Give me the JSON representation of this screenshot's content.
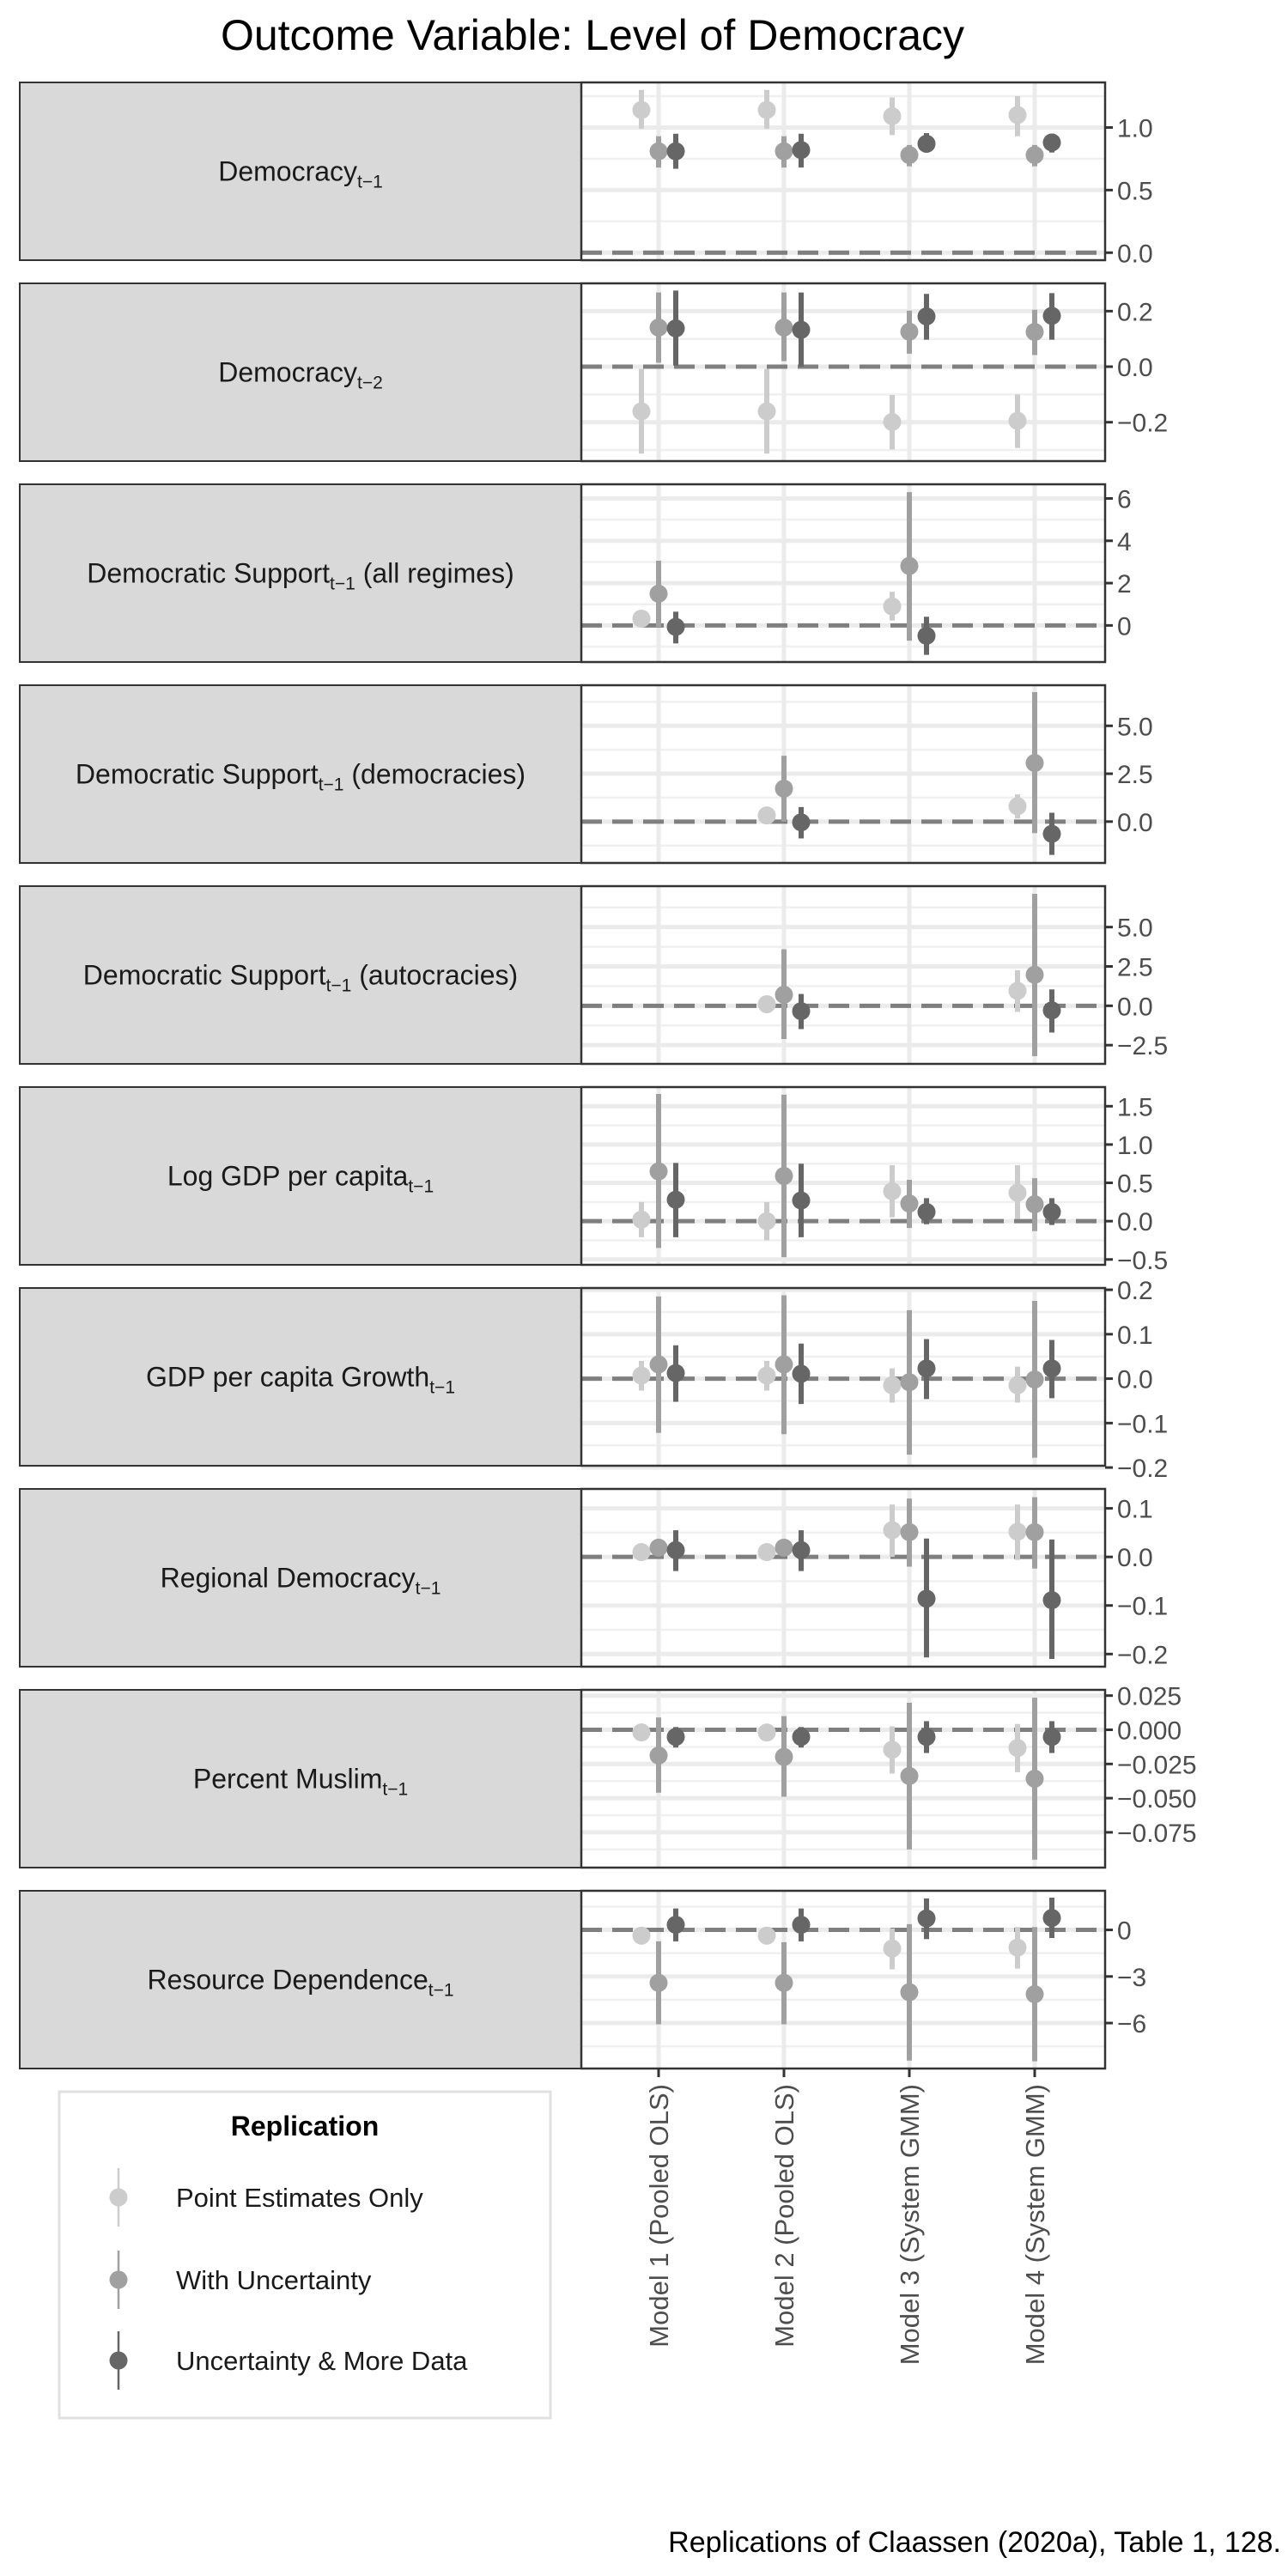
{
  "chart_data": {
    "type": "scatter",
    "subtype": "pointrange-facets",
    "title": "Outcome Variable: Level of Democracy",
    "caption": "Replications of Claassen (2020a), Table 1, 128.",
    "categories": [
      "Model 1 (Pooled OLS)",
      "Model 2 (Pooled OLS)",
      "Model 3 (System GMM)",
      "Model 4 (System GMM)"
    ],
    "reference_line": 0,
    "grid": true,
    "legend": {
      "title": "Replication",
      "placement": "bottom-left",
      "entries": [
        {
          "key": "light",
          "label": "Point Estimates Only",
          "color": "#cccccc"
        },
        {
          "key": "mid",
          "label": "With Uncertainty",
          "color": "#a0a0a0"
        },
        {
          "key": "dark",
          "label": "Uncertainty & More Data",
          "color": "#666666"
        }
      ]
    },
    "series_format": "per model: [estimate, lower, upper] or null",
    "panels": [
      {
        "label": {
          "main": "Democracy",
          "sub": "t−1",
          "suffix": ""
        },
        "ylim": [
          -0.06,
          1.36
        ],
        "breaks": [
          0,
          0.5,
          1.0
        ],
        "break_labels": [
          "0.0",
          "0.5",
          "1.0"
        ],
        "light": [
          [
            1.14,
            0.99,
            1.3
          ],
          [
            1.14,
            0.99,
            1.3
          ],
          [
            1.09,
            0.94,
            1.24
          ],
          [
            1.1,
            0.93,
            1.25
          ]
        ],
        "mid": [
          [
            0.81,
            0.68,
            0.93
          ],
          [
            0.81,
            0.68,
            0.93
          ],
          [
            0.78,
            0.69,
            0.86
          ],
          [
            0.78,
            0.69,
            0.86
          ]
        ],
        "dark": [
          [
            0.81,
            0.67,
            0.95
          ],
          [
            0.82,
            0.68,
            0.95
          ],
          [
            0.87,
            0.8,
            0.955
          ],
          [
            0.88,
            0.8,
            0.95
          ]
        ]
      },
      {
        "label": {
          "main": "Democracy",
          "sub": "t−2",
          "suffix": ""
        },
        "ylim": [
          -0.34,
          0.3
        ],
        "breaks": [
          -0.2,
          0,
          0.2
        ],
        "break_labels": [
          "−0.2",
          "0.0",
          "0.2"
        ],
        "light": [
          [
            -0.161,
            -0.313,
            -0.008
          ],
          [
            -0.161,
            -0.313,
            -0.008
          ],
          [
            -0.199,
            -0.298,
            -0.102
          ],
          [
            -0.195,
            -0.293,
            -0.1
          ]
        ],
        "mid": [
          [
            0.141,
            0.014,
            0.267
          ],
          [
            0.141,
            0.02,
            0.267
          ],
          [
            0.126,
            0.047,
            0.202
          ],
          [
            0.125,
            0.042,
            0.205
          ]
        ],
        "dark": [
          [
            0.138,
            0.004,
            0.274
          ],
          [
            0.133,
            0.0,
            0.267
          ],
          [
            0.181,
            0.097,
            0.262
          ],
          [
            0.183,
            0.097,
            0.265
          ]
        ]
      },
      {
        "label": {
          "main": "Democratic Support",
          "sub": "t−1",
          "suffix": " (all regimes)"
        },
        "ylim": [
          -1.73,
          6.67
        ],
        "breaks": [
          0,
          2,
          4,
          6
        ],
        "break_labels": [
          "0",
          "2",
          "4",
          "6"
        ],
        "light": [
          [
            0.32,
            null,
            null
          ],
          null,
          [
            0.9,
            0.23,
            1.59
          ],
          null
        ],
        "mid": [
          [
            1.5,
            -0.07,
            3.06
          ],
          null,
          [
            2.81,
            -0.72,
            6.3
          ],
          null
        ],
        "dark": [
          [
            -0.07,
            -0.85,
            0.65
          ],
          null,
          [
            -0.49,
            -1.39,
            0.41
          ],
          null
        ]
      },
      {
        "label": {
          "main": "Democratic Support",
          "sub": "t−1",
          "suffix": " (democracies)"
        },
        "ylim": [
          -2.16,
          7.12
        ],
        "breaks": [
          0,
          2.5,
          5
        ],
        "break_labels": [
          "0.0",
          "2.5",
          "5.0"
        ],
        "light": [
          null,
          [
            0.32,
            null,
            null
          ],
          null,
          [
            0.8,
            0.16,
            1.42
          ]
        ],
        "mid": [
          null,
          [
            1.72,
            0.0,
            3.44
          ],
          null,
          [
            3.06,
            -0.6,
            6.76
          ]
        ],
        "dark": [
          null,
          [
            -0.04,
            -0.88,
            0.76
          ],
          null,
          [
            -0.64,
            -1.74,
            0.46
          ]
        ]
      },
      {
        "label": {
          "main": "Democratic Support",
          "sub": "t−1",
          "suffix": " (autocracies)"
        },
        "ylim": [
          -3.69,
          7.6
        ],
        "breaks": [
          -2.5,
          0,
          2.5,
          5
        ],
        "break_labels": [
          "−2.5",
          "0.0",
          "2.5",
          "5.0"
        ],
        "light": [
          null,
          [
            0.1,
            null,
            null
          ],
          null,
          [
            0.95,
            -0.39,
            2.26
          ]
        ],
        "mid": [
          null,
          [
            0.7,
            -2.11,
            3.59
          ],
          null,
          [
            1.97,
            -3.2,
            7.11
          ]
        ],
        "dark": [
          null,
          [
            -0.34,
            -1.48,
            0.75
          ],
          null,
          [
            -0.29,
            -1.7,
            1.04
          ]
        ]
      },
      {
        "label": {
          "main": "Log GDP per capita",
          "sub": "t−1",
          "suffix": ""
        },
        "ylim": [
          -0.57,
          1.75
        ],
        "breaks": [
          -0.5,
          0,
          0.5,
          1.0,
          1.5
        ],
        "break_labels": [
          "−0.5",
          "0.0",
          "0.5",
          "1.0",
          "1.5"
        ],
        "light": [
          [
            0.02,
            -0.21,
            0.25
          ],
          [
            0.0,
            -0.25,
            0.25
          ],
          [
            0.39,
            0.05,
            0.73
          ],
          [
            0.37,
            0.03,
            0.73
          ]
        ],
        "mid": [
          [
            0.65,
            -0.35,
            1.66
          ],
          [
            0.59,
            -0.47,
            1.65
          ],
          [
            0.23,
            -0.09,
            0.54
          ],
          [
            0.22,
            -0.13,
            0.56
          ]
        ],
        "dark": [
          [
            0.28,
            -0.21,
            0.76
          ],
          [
            0.27,
            -0.21,
            0.75
          ],
          [
            0.12,
            -0.04,
            0.3
          ],
          [
            0.12,
            -0.05,
            0.3
          ]
        ]
      },
      {
        "label": {
          "main": "GDP per capita Growth",
          "sub": "t−1",
          "suffix": ""
        },
        "ylim": [
          -0.196,
          0.204
        ],
        "breaks": [
          -0.2,
          -0.1,
          0,
          0.1,
          0.2
        ],
        "break_labels": [
          "−0.2",
          "−0.1",
          "0.0",
          "0.1",
          "0.2"
        ],
        "light": [
          [
            0.007,
            -0.027,
            0.04
          ],
          [
            0.007,
            -0.027,
            0.04
          ],
          [
            -0.015,
            -0.054,
            0.023
          ],
          [
            -0.015,
            -0.054,
            0.027
          ]
        ],
        "mid": [
          [
            0.032,
            -0.122,
            0.185
          ],
          [
            0.032,
            -0.125,
            0.1875
          ],
          [
            -0.008,
            -0.171,
            0.154
          ],
          [
            -0.002,
            -0.178,
            0.175
          ]
        ],
        "dark": [
          [
            0.0125,
            -0.052,
            0.075
          ],
          [
            0.011,
            -0.057,
            0.079
          ],
          [
            0.023,
            -0.046,
            0.089
          ],
          [
            0.023,
            -0.044,
            0.087
          ]
        ]
      },
      {
        "label": {
          "main": "Regional Democracy",
          "sub": "t−1",
          "suffix": ""
        },
        "ylim": [
          -0.226,
          0.14
        ],
        "breaks": [
          -0.2,
          -0.1,
          0,
          0.1
        ],
        "break_labels": [
          "−0.2",
          "−0.1",
          "0.0",
          "0.1"
        ],
        "light": [
          [
            0.01,
            null,
            null
          ],
          [
            0.01,
            null,
            null
          ],
          [
            0.055,
            0.0,
            0.108
          ],
          [
            0.052,
            -0.006,
            0.108
          ]
        ],
        "mid": [
          [
            0.019,
            null,
            null
          ],
          [
            0.019,
            null,
            null
          ],
          [
            0.051,
            -0.02,
            0.12
          ],
          [
            0.051,
            -0.024,
            0.123
          ]
        ],
        "dark": [
          [
            0.014,
            -0.029,
            0.055
          ],
          [
            0.014,
            -0.029,
            0.055
          ],
          [
            -0.086,
            -0.207,
            0.038
          ],
          [
            -0.089,
            -0.21,
            0.036
          ]
        ]
      },
      {
        "label": {
          "main": "Percent Muslim",
          "sub": "t−1",
          "suffix": ""
        },
        "ylim": [
          -0.1008,
          0.0292
        ],
        "breaks": [
          -0.075,
          -0.05,
          -0.025,
          0,
          0.025
        ],
        "break_labels": [
          "−0.075",
          "−0.050",
          "−0.025",
          "0.000",
          "0.025"
        ],
        "light": [
          [
            -0.0019,
            null,
            null
          ],
          [
            -0.002,
            null,
            null
          ],
          [
            -0.0146,
            -0.032,
            0.0025
          ],
          [
            -0.0133,
            -0.031,
            0.0042
          ]
        ],
        "mid": [
          [
            -0.0188,
            -0.046,
            0.009
          ],
          [
            -0.0198,
            -0.049,
            0.01
          ],
          [
            -0.0338,
            -0.0875,
            0.0198
          ],
          [
            -0.0358,
            -0.095,
            0.0235
          ]
        ],
        "dark": [
          [
            -0.0052,
            -0.013,
            0.002
          ],
          [
            -0.0052,
            -0.013,
            0.002
          ],
          [
            -0.0052,
            -0.017,
            0.0063
          ],
          [
            -0.0052,
            -0.017,
            0.0063
          ]
        ]
      },
      {
        "label": {
          "main": "Resource Dependence",
          "sub": "t−1",
          "suffix": ""
        },
        "ylim": [
          -8.93,
          2.52
        ],
        "breaks": [
          -6,
          -3,
          0
        ],
        "break_labels": [
          "−6",
          "−3",
          "0"
        ],
        "light": [
          [
            -0.37,
            null,
            null
          ],
          [
            -0.37,
            null,
            null
          ],
          [
            -1.2,
            -2.54,
            0.09
          ],
          [
            -1.14,
            -2.49,
            0.18
          ]
        ],
        "mid": [
          [
            -3.41,
            -6.08,
            -0.74
          ],
          [
            -3.41,
            -6.08,
            -0.79
          ],
          [
            -4.01,
            -8.42,
            0.37
          ],
          [
            -4.14,
            -8.47,
            0.18
          ]
        ],
        "dark": [
          [
            0.33,
            -0.74,
            1.38
          ],
          [
            0.33,
            -0.74,
            1.38
          ],
          [
            0.74,
            -0.59,
            2.03
          ],
          [
            0.77,
            -0.52,
            2.08
          ]
        ]
      }
    ]
  }
}
